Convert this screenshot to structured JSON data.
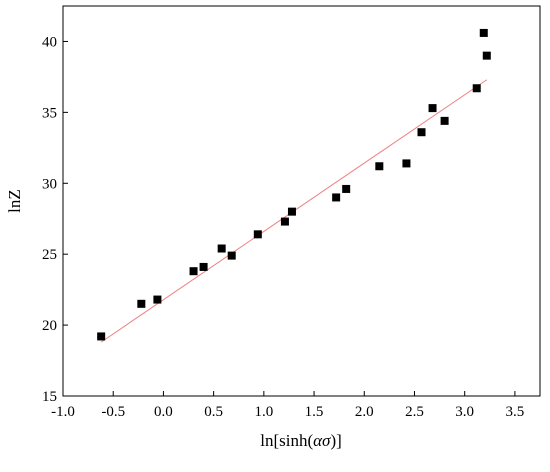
{
  "chart_data": {
    "type": "scatter",
    "xlabel_prefix": "ln[sinh(",
    "xlabel_symbol": "ασ",
    "xlabel_suffix": ")]",
    "ylabel": "lnZ",
    "xlim": [
      -1.0,
      3.75
    ],
    "ylim": [
      15,
      42.5
    ],
    "x_ticks": [
      "-1.0",
      "-0.5",
      "0.0",
      "0.5",
      "1.0",
      "1.5",
      "2.0",
      "2.5",
      "3.0",
      "3.5"
    ],
    "x_tick_values": [
      -1.0,
      -0.5,
      0.0,
      0.5,
      1.0,
      1.5,
      2.0,
      2.5,
      3.0,
      3.5
    ],
    "y_ticks": [
      "15",
      "20",
      "25",
      "30",
      "35",
      "40"
    ],
    "y_tick_values": [
      15,
      20,
      25,
      30,
      35,
      40
    ],
    "points": [
      {
        "x": -0.62,
        "y": 19.2
      },
      {
        "x": -0.22,
        "y": 21.5
      },
      {
        "x": -0.06,
        "y": 21.8
      },
      {
        "x": 0.3,
        "y": 23.8
      },
      {
        "x": 0.4,
        "y": 24.1
      },
      {
        "x": 0.58,
        "y": 25.4
      },
      {
        "x": 0.68,
        "y": 24.9
      },
      {
        "x": 0.94,
        "y": 26.4
      },
      {
        "x": 1.21,
        "y": 27.3
      },
      {
        "x": 1.28,
        "y": 28.0
      },
      {
        "x": 1.72,
        "y": 29.0
      },
      {
        "x": 1.82,
        "y": 29.6
      },
      {
        "x": 2.15,
        "y": 31.2
      },
      {
        "x": 2.42,
        "y": 31.4
      },
      {
        "x": 2.57,
        "y": 33.6
      },
      {
        "x": 2.68,
        "y": 35.3
      },
      {
        "x": 2.8,
        "y": 34.4
      },
      {
        "x": 3.12,
        "y": 36.7
      },
      {
        "x": 3.19,
        "y": 40.6
      },
      {
        "x": 3.22,
        "y": 39.0
      }
    ],
    "fit_line": {
      "x": [
        -0.62,
        3.22
      ],
      "y": [
        18.8,
        37.3
      ],
      "color": "#f08080"
    },
    "marker_color": "#000000",
    "grid": false
  }
}
